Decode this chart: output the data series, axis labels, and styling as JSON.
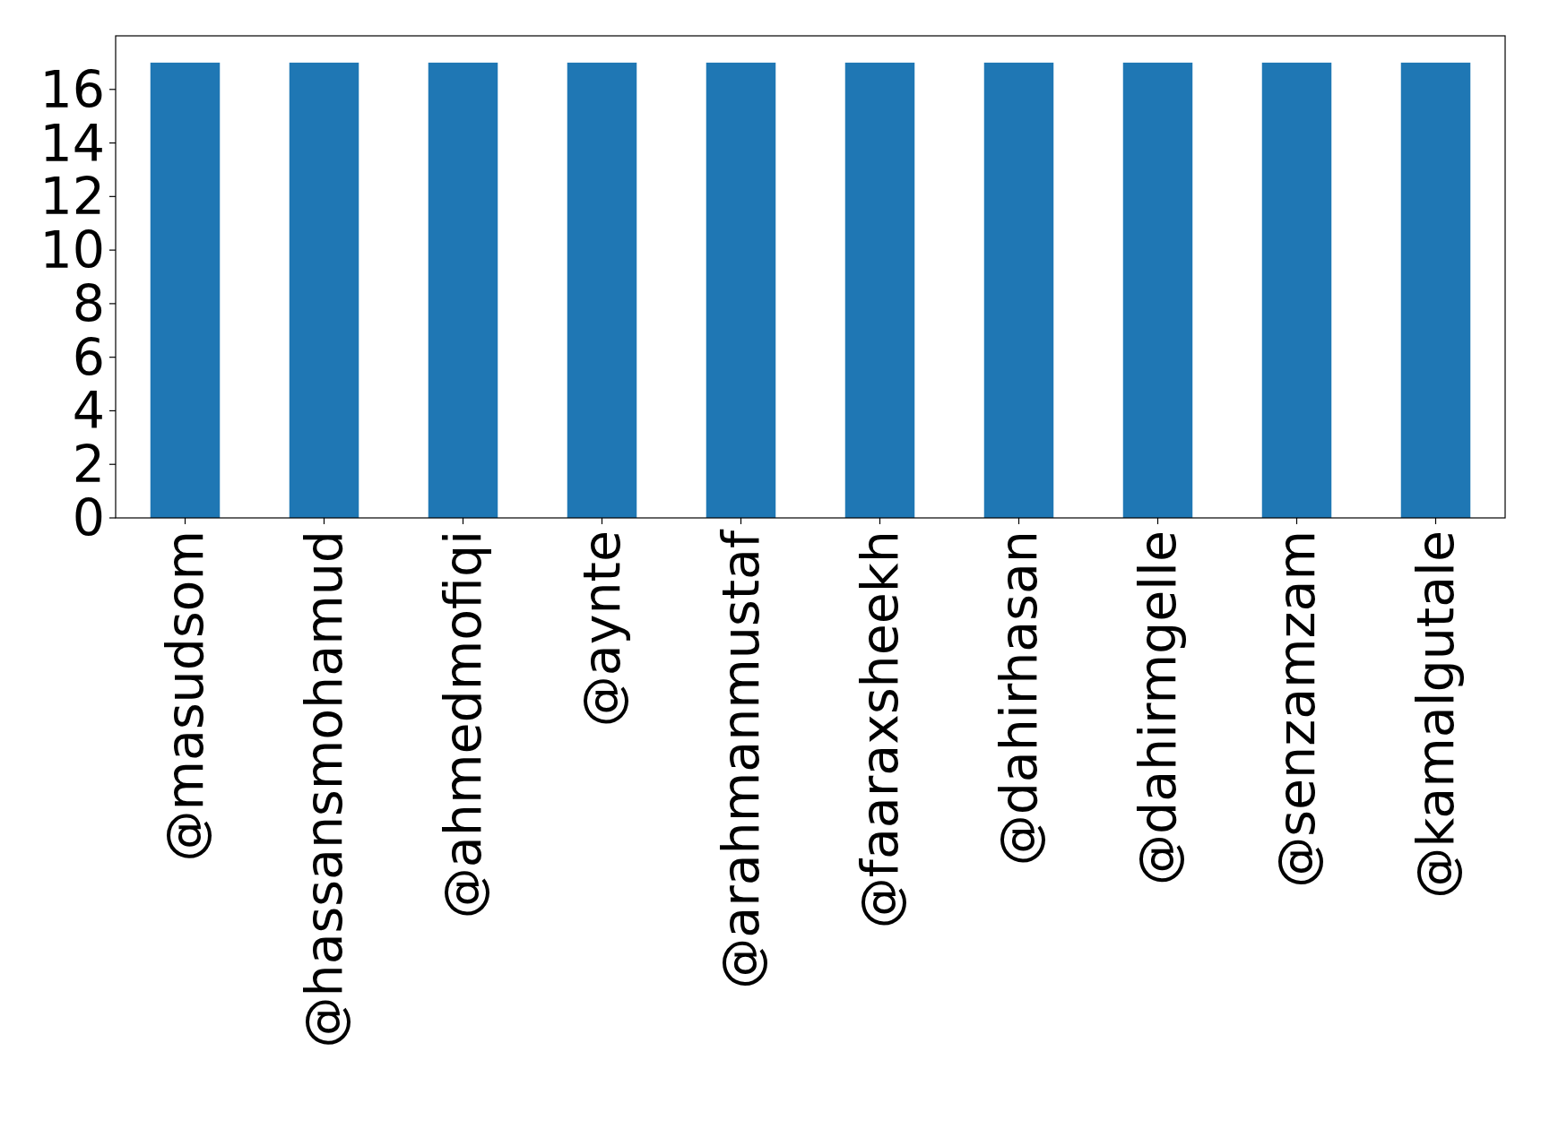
{
  "chart_data": {
    "type": "bar",
    "categories": [
      "@masudsom",
      "@hassansmohamud",
      "@ahmedmofiqi",
      "@aynte",
      "@arahmanmustaf",
      "@faaraxsheekh",
      "@dahirhasan",
      "@dahirmgelle",
      "@senzamzam",
      "@kamalgutale"
    ],
    "values": [
      17,
      17,
      17,
      17,
      17,
      17,
      17,
      17,
      17,
      17
    ],
    "color": "#1f77b4",
    "ylim": [
      0,
      18
    ],
    "yticks": [
      0,
      2,
      4,
      6,
      8,
      10,
      12,
      14,
      16
    ]
  }
}
